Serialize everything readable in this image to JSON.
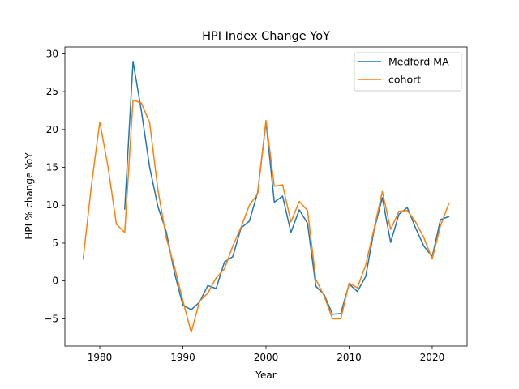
{
  "chart_data": {
    "type": "line",
    "title": "HPI Index Change YoY",
    "xlabel": "Year",
    "ylabel": "HPI % change YoY",
    "xlim": [
      1975.8,
      2024.2
    ],
    "ylim": [
      -8.6,
      30.9
    ],
    "xticks": [
      1980,
      1990,
      2000,
      2010,
      2020
    ],
    "yticks": [
      -5,
      0,
      5,
      10,
      15,
      20,
      25,
      30
    ],
    "grid": false,
    "legend_position": "top-right",
    "series": [
      {
        "name": "Medford MA",
        "color": "#1f77b4",
        "x": [
          1983,
          1984,
          1985,
          1986,
          1987,
          1988,
          1989,
          1990,
          1991,
          1992,
          1993,
          1994,
          1995,
          1996,
          1997,
          1998,
          1999,
          2000,
          2001,
          2002,
          2003,
          2004,
          2005,
          2006,
          2007,
          2008,
          2009,
          2010,
          2011,
          2012,
          2013,
          2014,
          2015,
          2016,
          2017,
          2018,
          2019,
          2020,
          2021,
          2022
        ],
        "y": [
          9.5,
          29.0,
          22.5,
          15.0,
          9.8,
          6.5,
          1.0,
          -3.2,
          -3.8,
          -2.8,
          -0.6,
          -1.0,
          2.5,
          3.2,
          7.0,
          7.9,
          11.7,
          21.0,
          10.4,
          11.2,
          6.4,
          9.4,
          7.6,
          -0.7,
          -1.8,
          -4.4,
          -4.3,
          -0.4,
          -1.4,
          0.6,
          6.7,
          11.0,
          5.1,
          8.8,
          9.7,
          7.0,
          4.6,
          3.2,
          8.1,
          8.5
        ]
      },
      {
        "name": "cohort",
        "color": "#ff7f0e",
        "x": [
          1978,
          1979,
          1980,
          1981,
          1982,
          1983,
          1984,
          1985,
          1986,
          1987,
          1988,
          1989,
          1990,
          1991,
          1992,
          1993,
          1994,
          1995,
          1996,
          1997,
          1998,
          1999,
          2000,
          2001,
          2002,
          2003,
          2004,
          2005,
          2006,
          2007,
          2008,
          2009,
          2010,
          2011,
          2012,
          2013,
          2014,
          2015,
          2016,
          2017,
          2018,
          2019,
          2020,
          2021,
          2022
        ],
        "y": [
          2.9,
          12.7,
          21.0,
          15.0,
          7.5,
          6.4,
          23.9,
          23.5,
          20.9,
          12.0,
          5.7,
          1.8,
          -2.6,
          -6.8,
          -2.7,
          -1.6,
          0.4,
          1.6,
          4.6,
          7.1,
          10.0,
          11.5,
          21.2,
          12.5,
          12.7,
          7.8,
          10.5,
          9.3,
          0.2,
          -2.0,
          -5.0,
          -5.0,
          -0.3,
          -0.9,
          2.1,
          6.9,
          11.8,
          6.8,
          9.2,
          9.3,
          7.8,
          5.7,
          2.9,
          7.3,
          10.2
        ]
      }
    ]
  }
}
